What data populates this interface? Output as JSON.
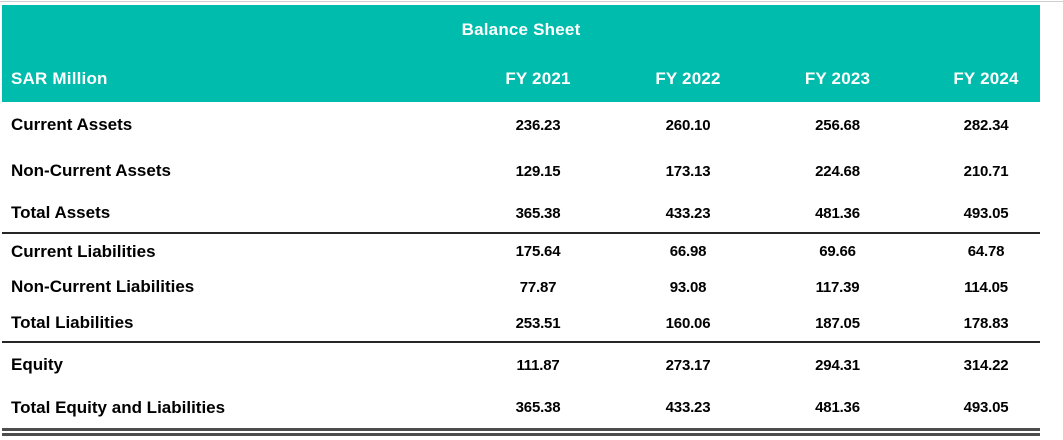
{
  "table": {
    "title": "Balance Sheet",
    "unit_label": "SAR Million",
    "columns": [
      "FY 2021",
      "FY 2022",
      "FY 2023",
      "FY 2024"
    ],
    "rows": [
      {
        "label": "Current Assets",
        "values": [
          "236.23",
          "260.10",
          "256.68",
          "282.34"
        ]
      },
      {
        "label": "Non-Current Assets",
        "values": [
          "129.15",
          "173.13",
          "224.68",
          "210.71"
        ]
      },
      {
        "label": "Total Assets",
        "values": [
          "365.38",
          "433.23",
          "481.36",
          "493.05"
        ]
      },
      {
        "label": "Current Liabilities",
        "values": [
          "175.64",
          "66.98",
          "69.66",
          "64.78"
        ]
      },
      {
        "label": "Non-Current Liabilities",
        "values": [
          "77.87",
          "93.08",
          "117.39",
          "114.05"
        ]
      },
      {
        "label": "Total Liabilities",
        "values": [
          "253.51",
          "160.06",
          "187.05",
          "178.83"
        ]
      },
      {
        "label": "Equity",
        "values": [
          "111.87",
          "273.17",
          "294.31",
          "314.22"
        ]
      },
      {
        "label": "Total Equity and Liabilities",
        "values": [
          "365.38",
          "433.23",
          "481.36",
          "493.05"
        ]
      }
    ]
  },
  "chart_data": {
    "type": "table",
    "title": "Balance Sheet",
    "unit": "SAR Million",
    "categories": [
      "FY 2021",
      "FY 2022",
      "FY 2023",
      "FY 2024"
    ],
    "series": [
      {
        "name": "Current Assets",
        "values": [
          236.23,
          260.1,
          256.68,
          282.34
        ]
      },
      {
        "name": "Non-Current Assets",
        "values": [
          129.15,
          173.13,
          224.68,
          210.71
        ]
      },
      {
        "name": "Total Assets",
        "values": [
          365.38,
          433.23,
          481.36,
          493.05
        ]
      },
      {
        "name": "Current Liabilities",
        "values": [
          175.64,
          66.98,
          69.66,
          64.78
        ]
      },
      {
        "name": "Non-Current Liabilities",
        "values": [
          77.87,
          93.08,
          117.39,
          114.05
        ]
      },
      {
        "name": "Total Liabilities",
        "values": [
          253.51,
          160.06,
          187.05,
          178.83
        ]
      },
      {
        "name": "Equity",
        "values": [
          111.87,
          273.17,
          294.31,
          314.22
        ]
      },
      {
        "name": "Total Equity and Liabilities",
        "values": [
          365.38,
          433.23,
          481.36,
          493.05
        ]
      }
    ]
  },
  "colors": {
    "header_fill": "#00BCAD",
    "header_text": "#FFFFFF",
    "body_text": "#000000",
    "section_line": "#262626",
    "bottom_double_line": "#4D4D4D"
  }
}
